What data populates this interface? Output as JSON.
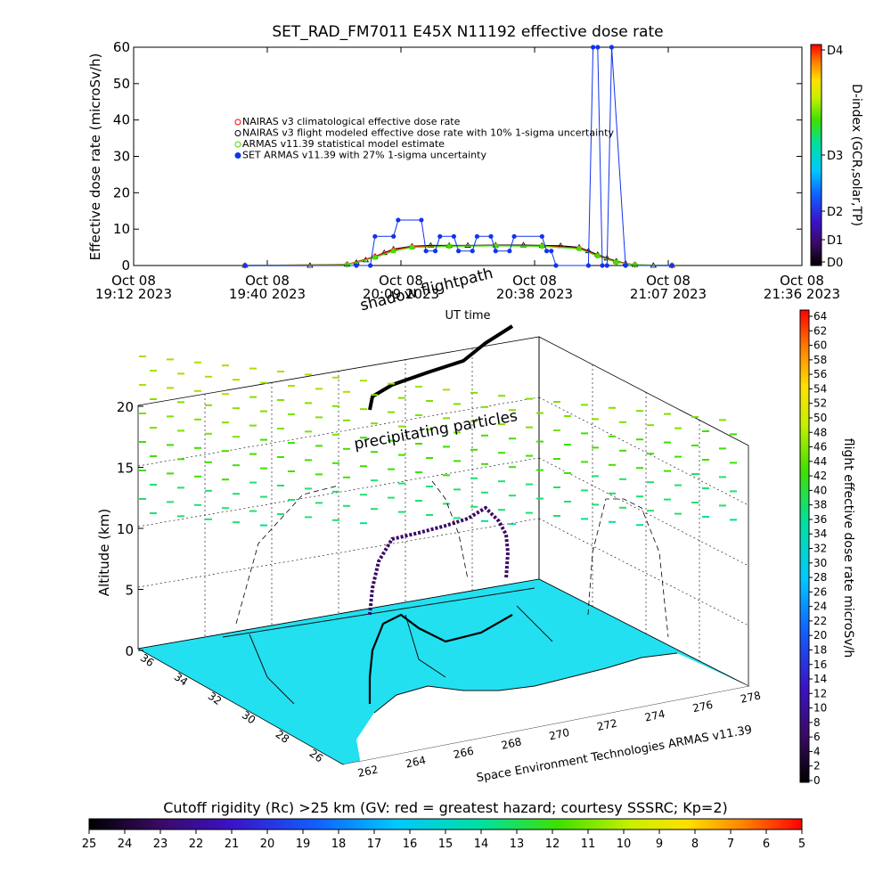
{
  "title": "SET_RAD_FM7011  E45X N11192 effective dose rate",
  "colors": {
    "nairas_clim": "#ff0000",
    "nairas_flight": "#000000",
    "armas_model": "#44dd00",
    "set_armas": "#1133ee"
  },
  "chart_data": [
    {
      "type": "line",
      "title": "SET_RAD_FM7011  E45X N11192 effective dose rate",
      "ylabel": "Effective dose rate (microSv/h)",
      "xlabel": "UT time",
      "ylim": [
        0,
        60
      ],
      "yticks": [
        "0",
        "10",
        "20",
        "30",
        "40",
        "50",
        "60"
      ],
      "xticks": [
        {
          "line1": "Oct 08",
          "line2": "19:12 2023"
        },
        {
          "line1": "Oct 08",
          "line2": "19:40 2023"
        },
        {
          "line1": "Oct 08",
          "line2": "20:09 2023"
        },
        {
          "line1": "Oct 08",
          "line2": "20:38 2023"
        },
        {
          "line1": "Oct 08",
          "line2": "21:07 2023"
        },
        {
          "line1": "Oct 08",
          "line2": "21:36 2023"
        }
      ],
      "xlim_minutes_ut": [
        1152,
        1296
      ],
      "legend_placement": "upper-left",
      "legend": [
        "NAIRAS v3 climatological effective dose rate",
        "NAIRAS v3 flight modeled effective dose rate with 10% 1-sigma uncertainty",
        "ARMAS v11.39 statistical model estimate",
        "SET ARMAS v11.39 with 27% 1-sigma uncertainty"
      ],
      "right_axis": {
        "label": "D-index (GCR,solar,TP)",
        "ticks": [
          "D0",
          "D1",
          "D2",
          "D3",
          "D4"
        ]
      },
      "series": [
        {
          "name": "NAIRAS v3 flight modeled effective dose rate with 10% 1-sigma uncertainty",
          "x": [
            1176,
            1190,
            1198,
            1200,
            1202,
            1204,
            1206,
            1208,
            1212,
            1216,
            1220,
            1224,
            1230,
            1236,
            1240,
            1244,
            1248,
            1250,
            1252,
            1254,
            1256,
            1258,
            1260,
            1264,
            1268
          ],
          "y": [
            0,
            0,
            0.3,
            0.8,
            1.5,
            2.5,
            3.5,
            4.5,
            5.3,
            5.5,
            5.5,
            5.5,
            5.6,
            5.6,
            5.5,
            5.4,
            5.0,
            4.0,
            3.0,
            2.0,
            1.2,
            0.6,
            0.2,
            0,
            0
          ]
        },
        {
          "name": "NAIRAS v3 climatological effective dose rate",
          "x": [
            1176,
            1198,
            1204,
            1208,
            1212,
            1220,
            1230,
            1240,
            1248,
            1252,
            1256,
            1260,
            1268
          ],
          "y": [
            0,
            0.3,
            2.5,
            4.3,
            5.2,
            5.4,
            5.5,
            5.4,
            4.8,
            2.8,
            1.0,
            0.2,
            0
          ]
        },
        {
          "name": "ARMAS v11.39 statistical model estimate",
          "x": [
            1176,
            1198,
            1204,
            1208,
            1212,
            1220,
            1230,
            1240,
            1248,
            1252,
            1256,
            1260,
            1268
          ],
          "y": [
            0,
            0.2,
            2.2,
            4.0,
            5.0,
            5.3,
            5.4,
            5.3,
            4.6,
            2.6,
            0.9,
            0.2,
            0
          ]
        },
        {
          "name": "SET ARMAS v11.39 with 27% 1-sigma uncertainty",
          "x": [
            1176,
            1200,
            1203,
            1204,
            1208,
            1209,
            1214,
            1215,
            1217,
            1218,
            1221,
            1222,
            1225,
            1226,
            1229,
            1230,
            1233,
            1234,
            1240,
            1241,
            1242,
            1243,
            1250,
            1251,
            1252,
            1253,
            1254,
            1255,
            1258,
            1268
          ],
          "y": [
            0,
            0,
            0,
            8,
            8,
            12.5,
            12.5,
            4,
            4,
            8,
            8,
            4,
            4,
            8,
            8,
            4,
            4,
            8,
            8,
            4,
            4,
            0,
            0,
            61,
            61,
            0,
            0,
            61,
            0,
            0
          ]
        }
      ]
    },
    {
      "type": "scatter",
      "title": "Space Environment Technologies ARMAS v11.39",
      "zlabel": "Altitude (km)",
      "zticks": [
        "0",
        "5",
        "10",
        "15",
        "20"
      ],
      "lat_ticks": [
        "26",
        "28",
        "30",
        "32",
        "34",
        "36"
      ],
      "lon_ticks": [
        "262",
        "264",
        "266",
        "268",
        "270",
        "272",
        "274",
        "276",
        "278"
      ],
      "annotations": [
        "shadow flightpath",
        "precipitating particles"
      ],
      "colorbar_right": {
        "label": "flight effective dose rate microSv/h",
        "range": [
          0,
          64
        ],
        "ticks": [
          "0",
          "2",
          "4",
          "6",
          "8",
          "10",
          "12",
          "14",
          "16",
          "18",
          "20",
          "22",
          "24",
          "26",
          "28",
          "30",
          "32",
          "34",
          "36",
          "38",
          "40",
          "42",
          "44",
          "46",
          "48",
          "50",
          "52",
          "54",
          "56",
          "58",
          "60",
          "62",
          "64"
        ]
      },
      "colorbar_bottom": {
        "label": "Cutoff rigidity (Rc) >25 km (GV: red = greatest hazard; courtesy SSSRC; Kp=2)",
        "range": [
          25,
          5
        ],
        "ticks": [
          "25",
          "24",
          "23",
          "22",
          "21",
          "20",
          "19",
          "18",
          "17",
          "16",
          "15",
          "14",
          "13",
          "12",
          "11",
          "10",
          "9",
          "8",
          "7",
          "6",
          "5"
        ]
      }
    }
  ]
}
